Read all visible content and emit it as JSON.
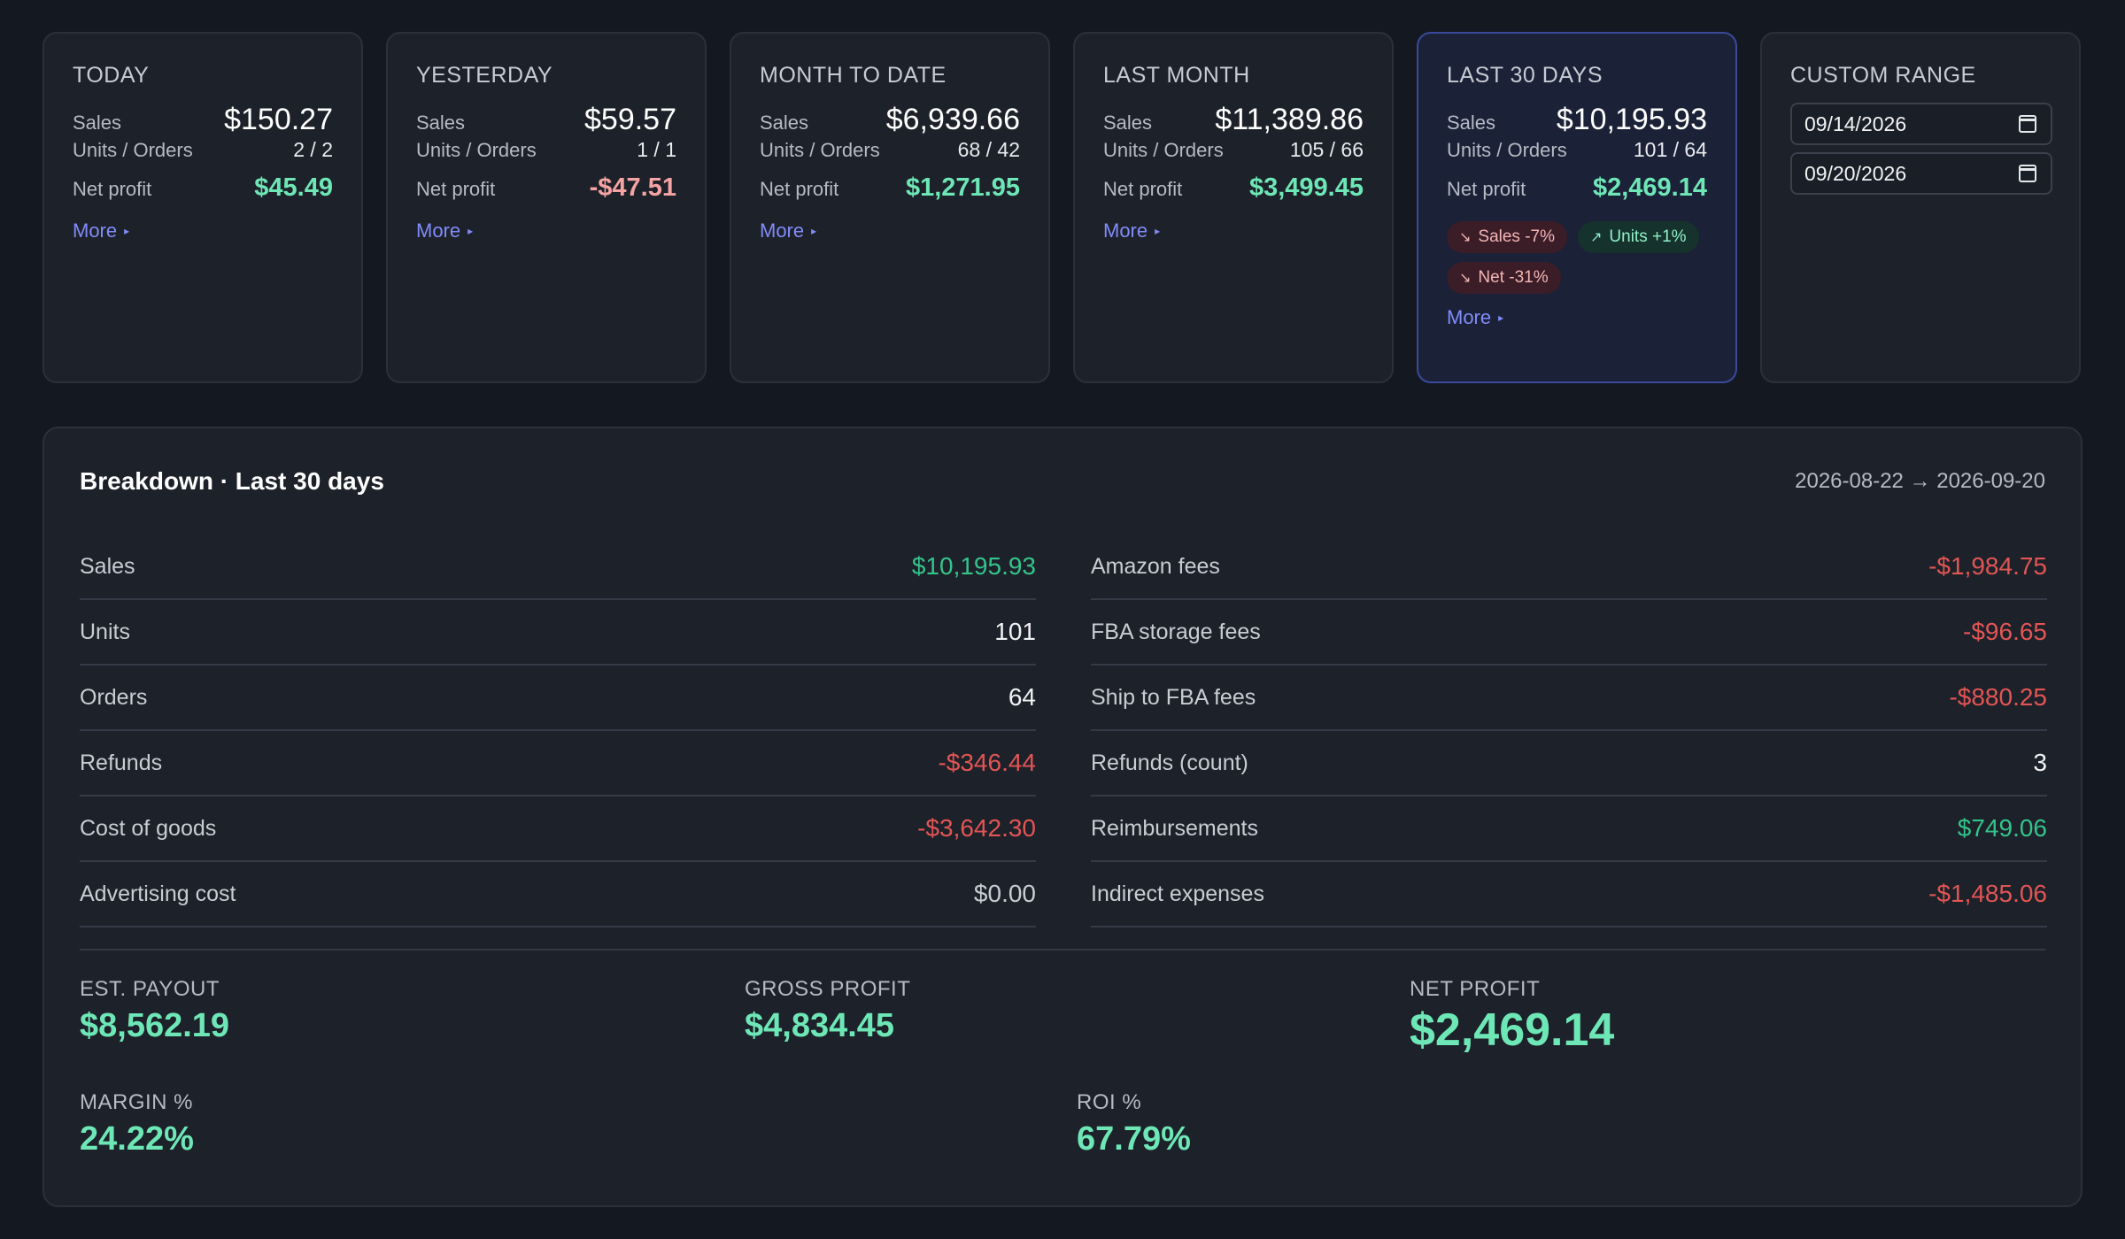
{
  "cards": [
    {
      "title": "TODAY",
      "sales_label": "Sales",
      "sales": "$150.27",
      "units_label": "Units / Orders",
      "units": "2 / 2",
      "net_label": "Net profit",
      "net": "$45.49",
      "more": "More"
    },
    {
      "title": "YESTERDAY",
      "sales_label": "Sales",
      "sales": "$59.57",
      "units_label": "Units / Orders",
      "units": "1 / 1",
      "net_label": "Net profit",
      "net": "-$47.51",
      "more": "More"
    },
    {
      "title": "MONTH TO DATE",
      "sales_label": "Sales",
      "sales": "$6,939.66",
      "units_label": "Units / Orders",
      "units": "68 / 42",
      "net_label": "Net profit",
      "net": "$1,271.95",
      "more": "More"
    },
    {
      "title": "LAST MONTH",
      "sales_label": "Sales",
      "sales": "$11,389.86",
      "units_label": "Units / Orders",
      "units": "105 / 66",
      "net_label": "Net profit",
      "net": "$3,499.45",
      "more": "More"
    },
    {
      "title": "LAST 30 DAYS",
      "sales_label": "Sales",
      "sales": "$10,195.93",
      "units_label": "Units / Orders",
      "units": "101 / 64",
      "net_label": "Net profit",
      "net": "$2,469.14",
      "more": "More",
      "chips": [
        {
          "text": "Sales -7%",
          "direction": "down"
        },
        {
          "text": "Units +1%",
          "direction": "up"
        },
        {
          "text": "Net -31%",
          "direction": "down"
        }
      ]
    }
  ],
  "custom_range": {
    "title": "CUSTOM RANGE",
    "start": "09/14/2026",
    "end": "09/20/2026",
    "icon": "calendar-icon"
  },
  "breakdown": {
    "title": "Breakdown · Last 30 days",
    "range": "2026-08-22 → 2026-09-20",
    "left": [
      {
        "label": "Sales",
        "value": "$10,195.93"
      },
      {
        "label": "Units",
        "value": "101"
      },
      {
        "label": "Orders",
        "value": "64"
      },
      {
        "label": "Refunds",
        "value": "-$346.44"
      },
      {
        "label": "Cost of goods",
        "value": "-$3,642.30"
      },
      {
        "label": "Advertising cost",
        "value": "$0.00"
      }
    ],
    "right": [
      {
        "label": "Amazon fees",
        "value": "-$1,984.75"
      },
      {
        "label": "FBA storage fees",
        "value": "-$96.65"
      },
      {
        "label": "Ship to FBA fees",
        "value": "-$880.25"
      },
      {
        "label": "Refunds (count)",
        "value": "3"
      },
      {
        "label": "Reimbursements",
        "value": "$749.06"
      },
      {
        "label": "Indirect expenses",
        "value": "-$1,485.06"
      }
    ],
    "summary": {
      "payout_label": "EST. PAYOUT",
      "payout": "$8,562.19",
      "gross_label": "GROSS PROFIT",
      "gross": "$4,834.45",
      "net_label": "NET PROFIT",
      "net": "$2,469.14",
      "margin_label": "MARGIN %",
      "margin": "24.22%",
      "roi_label": "ROI %",
      "roi": "67.79%"
    }
  },
  "colors": {
    "positive": "#6ee7b7",
    "negative": "#f5a3a3",
    "accent": "#818cf8",
    "active_border": "#3b4a9b"
  }
}
